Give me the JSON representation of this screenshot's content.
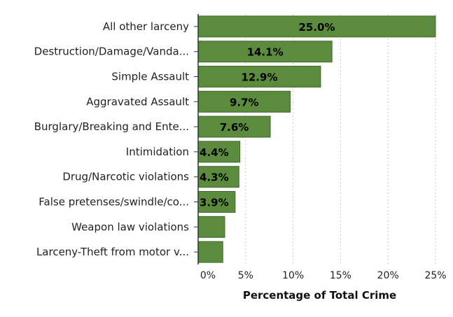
{
  "chart_data": {
    "type": "bar",
    "orientation": "horizontal",
    "categories": [
      "All other larceny",
      "Destruction/Damage/Vanda...",
      "Simple Assault",
      "Aggravated Assault",
      "Burglary/Breaking and Ente...",
      "Intimidation",
      "Drug/Narcotic violations",
      "False pretenses/swindle/co...",
      "Weapon law violations",
      "Larceny-Theft from motor v..."
    ],
    "values": [
      25.0,
      14.1,
      12.9,
      9.7,
      7.6,
      4.4,
      4.3,
      3.9,
      2.8,
      2.6
    ],
    "data_labels": [
      "25.0%",
      "14.1%",
      "12.9%",
      "9.7%",
      "7.6%",
      "4.4%",
      "4.3%",
      "3.9%",
      "",
      ""
    ],
    "xlabel": "Percentage of Total Crime",
    "ylabel": "",
    "xlim": [
      0,
      25
    ],
    "xticks": [
      0,
      5,
      10,
      15,
      20,
      25
    ],
    "xtick_labels": [
      "0%",
      "5%",
      "10%",
      "15%",
      "20%",
      "25%"
    ],
    "grid": "vertical dotted",
    "legend": "none",
    "bar_color": "#5b8c3e",
    "bar_edge_color": "#3f6a2a",
    "grid_color": "#c8c8c8",
    "axis_color": "#333333"
  }
}
